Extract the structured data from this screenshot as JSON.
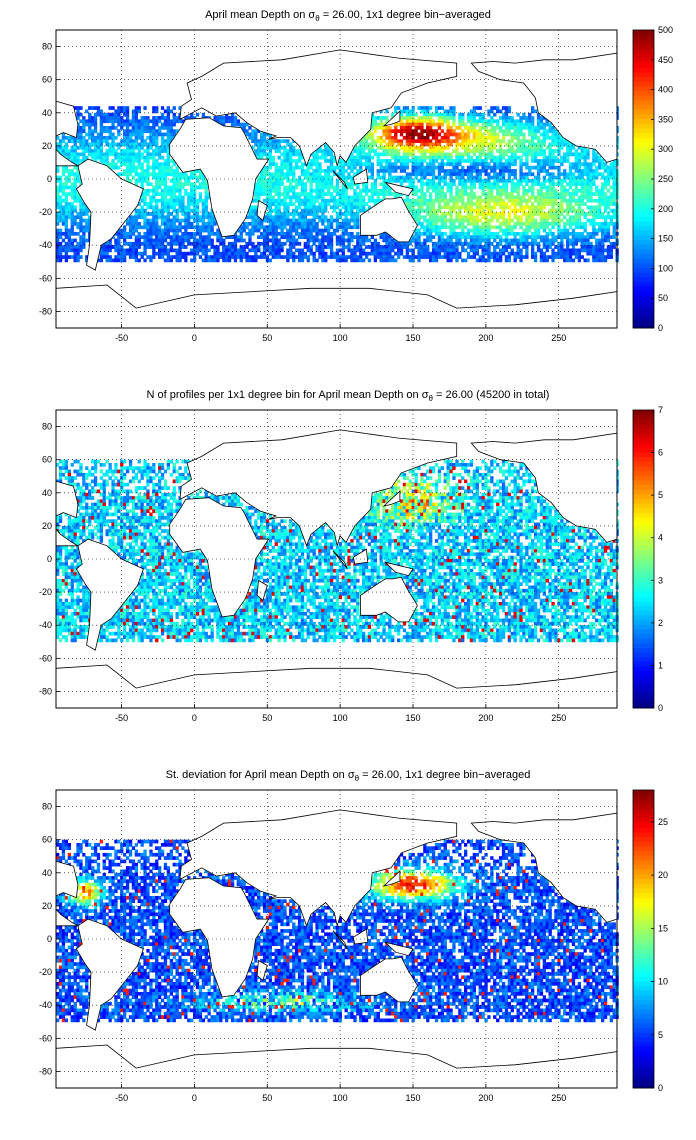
{
  "colormap": "jet",
  "chart_data": [
    {
      "type": "heatmap",
      "title_prefix": "April mean Depth on ",
      "title_sub": "θ",
      "title_suffix": " = 26.00, 1x1 degree bin−averaged",
      "title_symbol": "σ",
      "xlim": [
        -95,
        290
      ],
      "ylim": [
        -90,
        90
      ],
      "xticks": [
        -50,
        0,
        50,
        100,
        150,
        200,
        250
      ],
      "yticks": [
        80,
        60,
        40,
        20,
        0,
        -20,
        -40,
        -60,
        -80
      ],
      "grid": true,
      "colorbar": {
        "min": 0,
        "max": 500,
        "ticks": [
          500,
          450,
          400,
          350,
          300,
          250,
          200,
          150,
          100,
          50,
          0
        ]
      }
    },
    {
      "type": "heatmap",
      "title_prefix": "N of profiles per 1x1 degree bin for April mean Depth on ",
      "title_sub": "θ",
      "title_suffix": " = 26.00 (45200 in total)",
      "title_symbol": "σ",
      "xlim": [
        -95,
        290
      ],
      "ylim": [
        -90,
        90
      ],
      "xticks": [
        -50,
        0,
        50,
        100,
        150,
        200,
        250
      ],
      "yticks": [
        80,
        60,
        40,
        20,
        0,
        -20,
        -40,
        -60,
        -80
      ],
      "grid": true,
      "colorbar": {
        "min": 0,
        "max": 7,
        "ticks": [
          7,
          6,
          5,
          4,
          3,
          2,
          1,
          0
        ]
      }
    },
    {
      "type": "heatmap",
      "title_prefix": "St. deviation for April mean Depth on ",
      "title_sub": "θ",
      "title_suffix": " = 26.00, 1x1 degree bin−averaged",
      "title_symbol": "σ",
      "xlim": [
        -95,
        290
      ],
      "ylim": [
        -90,
        90
      ],
      "xticks": [
        -50,
        0,
        50,
        100,
        150,
        200,
        250
      ],
      "yticks": [
        80,
        60,
        40,
        20,
        0,
        -20,
        -40,
        -60,
        -80
      ],
      "grid": true,
      "colorbar": {
        "min": 0,
        "max": 28,
        "ticks": [
          25,
          20,
          15,
          10,
          5,
          0
        ]
      }
    }
  ]
}
